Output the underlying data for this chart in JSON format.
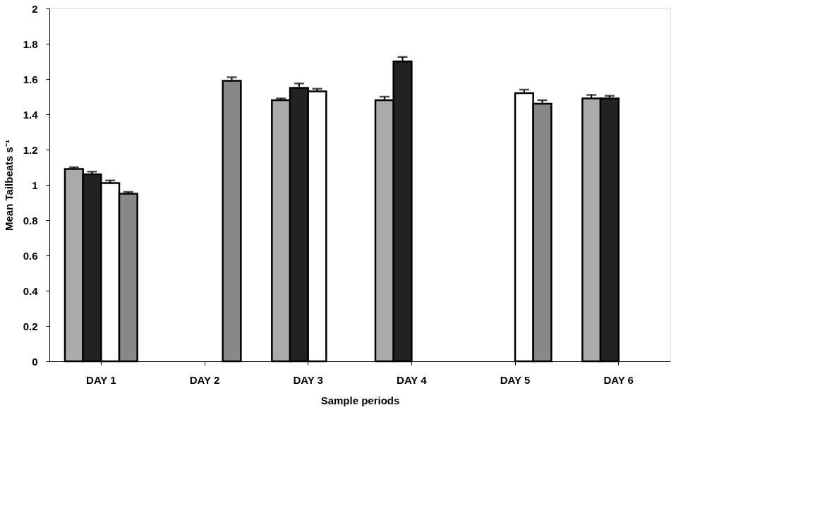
{
  "chart_data": {
    "type": "bar",
    "xlabel": "Sample periods",
    "ylabel": "Mean Tailbeats s⁻¹",
    "categories": [
      "DAY 1",
      "DAY 2",
      "DAY 3",
      "DAY 4",
      "DAY 5",
      "DAY 6"
    ],
    "series": [
      {
        "color": "#aaaaaa",
        "values": [
          1.09,
          null,
          1.48,
          1.48,
          null,
          1.49
        ],
        "errors": [
          0.01,
          null,
          0.01,
          0.02,
          null,
          0.02
        ]
      },
      {
        "color": "#222222",
        "values": [
          1.06,
          null,
          1.55,
          1.7,
          null,
          1.49
        ],
        "errors": [
          0.015,
          null,
          0.025,
          0.025,
          null,
          0.015
        ]
      },
      {
        "color": "#ffffff",
        "values": [
          1.01,
          null,
          1.53,
          null,
          1.52,
          null
        ],
        "errors": [
          0.015,
          null,
          0.015,
          null,
          0.02,
          null
        ]
      },
      {
        "color": "#888888",
        "values": [
          0.95,
          1.59,
          null,
          null,
          1.46,
          null
        ],
        "errors": [
          0.01,
          0.02,
          null,
          null,
          0.02,
          null
        ]
      }
    ],
    "ylim": [
      0,
      2
    ],
    "yticks": [
      0,
      0.2,
      0.4,
      0.6,
      0.8,
      1,
      1.2,
      1.4,
      1.6,
      1.8,
      2
    ],
    "grid": false,
    "legend": false
  }
}
